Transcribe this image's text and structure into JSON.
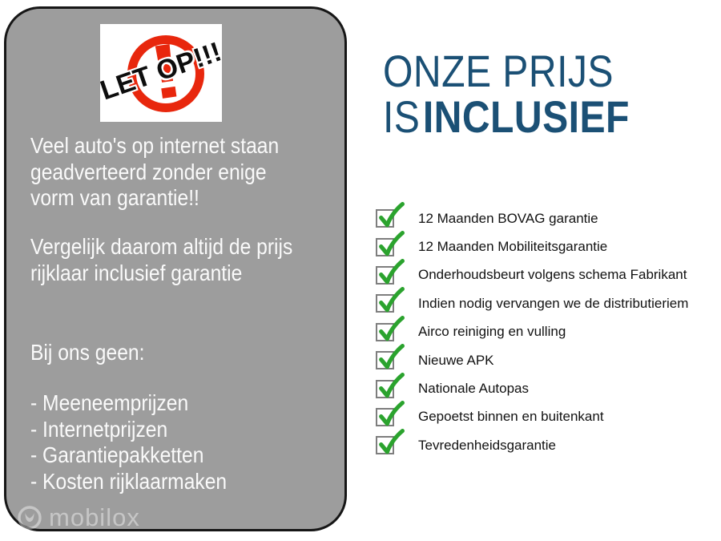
{
  "colors": {
    "panel_gray": "#9d9d9d",
    "panel_border": "#161616",
    "title_blue": "#1b5075",
    "check_green": "#2ba32e",
    "warning_red": "#e8270d",
    "panel_text": "#fafafa",
    "checkbox_border": "#7e7e7e",
    "list_text": "#121212",
    "watermark_gray": "rgba(255,255,255,0.42)"
  },
  "left_panel": {
    "warning_badge": {
      "label": "LET OP!!!"
    },
    "paragraph1": "Veel auto's op internet staan\ngeadverteerd zonder enige\nvorm van garantie!!",
    "paragraph2": "Vergelijk daarom altijd de prijs\nrijklaar inclusief garantie",
    "list_intro": "Bij ons geen:",
    "list_items": [
      "- Meeneemprijzen",
      "- Internetprijzen",
      "- Garantiepakketten",
      "- Kosten rijklaarmaken"
    ],
    "watermark": "mobilox"
  },
  "right_panel": {
    "title_line1": "ONZE PRIJS",
    "title_line2_regular": "IS",
    "title_line2_bold": "INCLUSIEF",
    "checklist": [
      "12 Maanden BOVAG garantie",
      "12 Maanden Mobiliteitsgarantie",
      "Onderhoudsbeurt volgens schema Fabrikant",
      "Indien nodig vervangen we de distributieriem",
      "Airco reiniging en vulling",
      "Nieuwe APK",
      "Nationale Autopas",
      "Gepoetst binnen en buitenkant",
      "Tevredenheidsgarantie"
    ]
  }
}
